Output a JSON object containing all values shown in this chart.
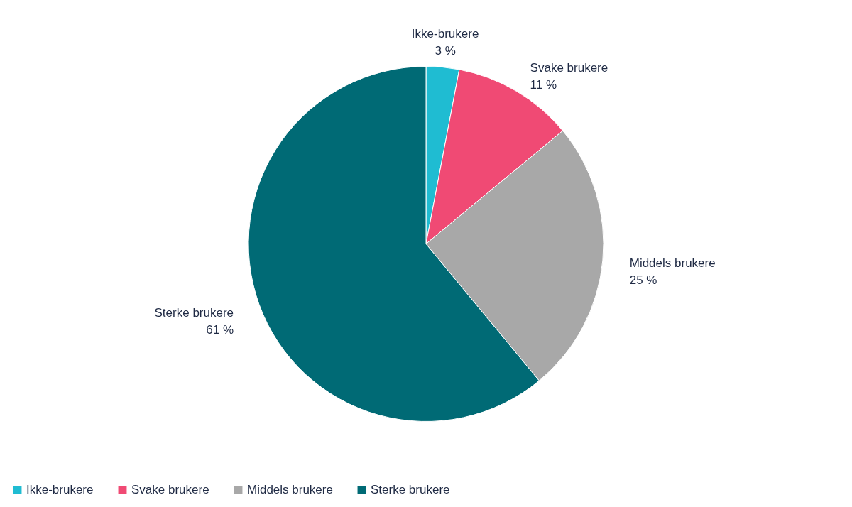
{
  "chart_data": {
    "type": "pie",
    "categories": [
      "Ikke-brukere",
      "Svake brukere",
      "Middels brukere",
      "Sterke brukere"
    ],
    "values": [
      3,
      11,
      25,
      61
    ],
    "colors": [
      "#1fbcd2",
      "#f04a74",
      "#a8a8a8",
      "#006a75"
    ],
    "value_labels": [
      "3 %",
      "11 %",
      "25 %",
      "61 %"
    ],
    "legend": "bottom"
  }
}
